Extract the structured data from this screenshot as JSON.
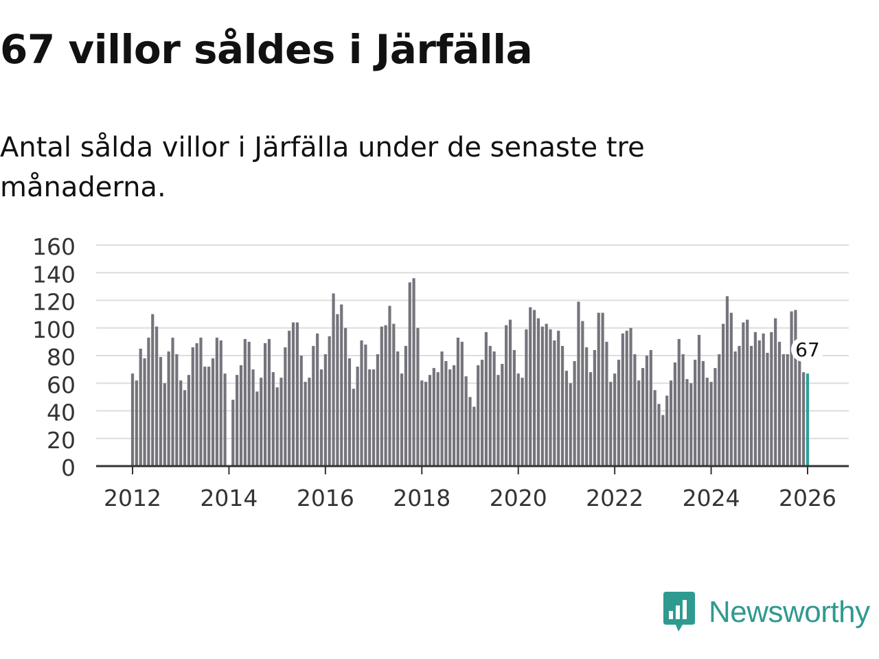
{
  "title": "67 villor såldes i Järfälla",
  "subtitle": "Antal sålda villor i Järfälla under de senaste tre månaderna.",
  "brand": {
    "name": "Newsworthy"
  },
  "colors": {
    "bar": "#75747c",
    "highlight": "#2aa198",
    "grid": "#dddddd",
    "axis": "#333333",
    "brand": "#2f9a8f"
  },
  "chart_data": {
    "type": "bar",
    "title": "Antal sålda villor i Järfälla under de senaste tre månaderna.",
    "xlabel": "",
    "ylabel": "",
    "ylim": [
      0,
      160
    ],
    "yticks": [
      0,
      20,
      40,
      60,
      80,
      100,
      120,
      140,
      160
    ],
    "x_ticks": [
      2012,
      2014,
      2016,
      2018,
      2020,
      2022,
      2024,
      2026
    ],
    "x_start": "2012-01",
    "x_end": "2026-02",
    "highlight_label": "67",
    "values": [
      67,
      62,
      85,
      78,
      93,
      110,
      101,
      79,
      60,
      83,
      93,
      81,
      62,
      55,
      66,
      86,
      89,
      93,
      72,
      72,
      78,
      93,
      91,
      67,
      null,
      48,
      66,
      73,
      92,
      90,
      70,
      54,
      64,
      89,
      92,
      68,
      57,
      64,
      86,
      98,
      104,
      104,
      80,
      61,
      64,
      87,
      96,
      70,
      81,
      94,
      125,
      110,
      117,
      100,
      78,
      56,
      72,
      91,
      88,
      70,
      70,
      81,
      101,
      102,
      116,
      103,
      83,
      67,
      87,
      133,
      136,
      100,
      62,
      61,
      66,
      71,
      68,
      83,
      76,
      70,
      73,
      93,
      90,
      65,
      50,
      43,
      73,
      77,
      97,
      87,
      83,
      66,
      74,
      102,
      106,
      84,
      67,
      64,
      99,
      115,
      113,
      107,
      101,
      103,
      99,
      91,
      98,
      87,
      69,
      60,
      76,
      119,
      105,
      86,
      68,
      84,
      111,
      111,
      90,
      61,
      67,
      77,
      96,
      98,
      100,
      81,
      62,
      71,
      80,
      84,
      55,
      45,
      37,
      51,
      62,
      75,
      92,
      81,
      63,
      60,
      77,
      95,
      76,
      64,
      61,
      71,
      81,
      103,
      123,
      111,
      83,
      87,
      104,
      106,
      87,
      97,
      91,
      96,
      82,
      97,
      107,
      90,
      81,
      81,
      112,
      113,
      81,
      68,
      67
    ]
  }
}
